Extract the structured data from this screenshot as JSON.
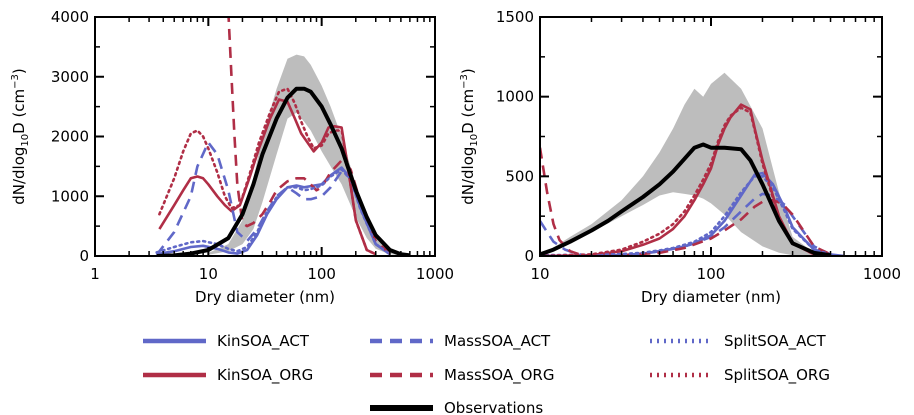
{
  "colors": {
    "act": "#6068c8",
    "org": "#b02e46",
    "obs": "#000000",
    "band": "#bdbdbd"
  },
  "chart_data": [
    {
      "type": "line",
      "xscale": "log",
      "xlim": [
        1,
        1000
      ],
      "ylim": [
        0,
        4000
      ],
      "xticks": [
        "1",
        "10",
        "100",
        "1000"
      ],
      "yticks": [
        "0",
        "1000",
        "2000",
        "3000",
        "4000"
      ],
      "xlabel": "Dry diameter (nm)",
      "ylabel_main": "dN/dlog",
      "ylabel_sub": "10",
      "ylabel_tail": "D (cm",
      "ylabel_sup": "−3",
      "ylabel_close": ")",
      "band": {
        "x": [
          10,
          15,
          20,
          25,
          30,
          40,
          50,
          60,
          70,
          80,
          100,
          120,
          150,
          200,
          250,
          300,
          400,
          500
        ],
        "lower": [
          20,
          80,
          200,
          450,
          900,
          1700,
          2300,
          2400,
          2250,
          2100,
          1750,
          1500,
          1200,
          650,
          300,
          120,
          30,
          10
        ],
        "upper": [
          50,
          200,
          600,
          1300,
          2000,
          2800,
          3300,
          3370,
          3340,
          3200,
          2850,
          2500,
          2000,
          1200,
          700,
          400,
          100,
          30
        ]
      },
      "series": [
        {
          "name": "Observations",
          "color": "obs",
          "dash": "solid",
          "x": [
            3.5,
            5,
            7,
            10,
            15,
            20,
            25,
            30,
            40,
            50,
            60,
            70,
            80,
            100,
            120,
            150,
            200,
            250,
            300,
            400,
            500,
            600
          ],
          "y": [
            0,
            10,
            40,
            100,
            300,
            700,
            1200,
            1700,
            2300,
            2650,
            2800,
            2800,
            2750,
            2500,
            2200,
            1800,
            1100,
            650,
            350,
            100,
            30,
            10
          ]
        },
        {
          "name": "KinSOA_ACT",
          "color": "act",
          "dash": "solid",
          "x": [
            3.5,
            5,
            7,
            9,
            12,
            15,
            18,
            22,
            27,
            33,
            40,
            50,
            60,
            70,
            80,
            100,
            120,
            150,
            180,
            220,
            300,
            400
          ],
          "y": [
            30,
            80,
            150,
            170,
            120,
            60,
            40,
            100,
            350,
            700,
            950,
            1150,
            1180,
            1150,
            1170,
            1200,
            1350,
            1480,
            1300,
            800,
            200,
            30
          ]
        },
        {
          "name": "KinSOA_ORG",
          "color": "org",
          "dash": "solid",
          "x": [
            3.7,
            5,
            6,
            7,
            8,
            9,
            10,
            12,
            14,
            16,
            19,
            23,
            28,
            35,
            42,
            50,
            58,
            66,
            75,
            85,
            100,
            115,
            130,
            150,
            170,
            200,
            250,
            300
          ],
          "y": [
            450,
            850,
            1100,
            1300,
            1330,
            1300,
            1200,
            1000,
            850,
            750,
            850,
            1300,
            1800,
            2300,
            2620,
            2580,
            2300,
            2050,
            1900,
            1750,
            1900,
            2150,
            2170,
            2150,
            1500,
            600,
            100,
            30
          ]
        },
        {
          "name": "MassSOA_ACT",
          "color": "act",
          "dash": "dashed",
          "x": [
            3.5,
            5,
            7,
            8,
            10,
            12,
            15,
            18,
            22,
            27,
            33,
            40,
            50,
            60,
            70,
            80,
            100,
            120,
            150,
            180,
            220,
            300,
            400
          ],
          "y": [
            20,
            400,
            1000,
            1500,
            1900,
            1700,
            1100,
            400,
            250,
            450,
            750,
            1000,
            1150,
            1050,
            950,
            950,
            1000,
            1150,
            1420,
            1300,
            800,
            200,
            30
          ]
        },
        {
          "name": "MassSOA_ORG",
          "color": "org",
          "dash": "dashed",
          "x": [
            15,
            16,
            17,
            18,
            20,
            22,
            25,
            30,
            35,
            40,
            50,
            60,
            70,
            80,
            90,
            100,
            120,
            150,
            180,
            220,
            300,
            400
          ],
          "y": [
            4100,
            3000,
            2000,
            1200,
            550,
            500,
            550,
            700,
            900,
            1100,
            1250,
            1300,
            1300,
            1200,
            1100,
            1150,
            1400,
            1600,
            1450,
            900,
            250,
            40
          ]
        },
        {
          "name": "SplitSOA_ACT",
          "color": "act",
          "dash": "dotted",
          "x": [
            3.5,
            5,
            7,
            9,
            12,
            15,
            18,
            22,
            27,
            33,
            40,
            50,
            60,
            70,
            80,
            100,
            120,
            150,
            180,
            220,
            300,
            400
          ],
          "y": [
            60,
            150,
            230,
            250,
            200,
            120,
            80,
            150,
            400,
            750,
            980,
            1150,
            1150,
            1100,
            1120,
            1180,
            1330,
            1450,
            1280,
            780,
            200,
            30
          ]
        },
        {
          "name": "SplitSOA_ORG",
          "color": "org",
          "dash": "dotted",
          "x": [
            3.7,
            5,
            6,
            7,
            8,
            9,
            10,
            12,
            14,
            16,
            19,
            23,
            28,
            35,
            42,
            50,
            58,
            66,
            75,
            85,
            100,
            115,
            130,
            150,
            170,
            200,
            250,
            300
          ],
          "y": [
            700,
            1300,
            1750,
            2050,
            2100,
            2000,
            1800,
            1400,
            1000,
            800,
            850,
            1350,
            1900,
            2400,
            2750,
            2800,
            2550,
            2250,
            2000,
            1800,
            1850,
            2050,
            2100,
            2100,
            1500,
            600,
            100,
            30
          ]
        }
      ]
    },
    {
      "type": "line",
      "xscale": "log",
      "xlim": [
        10,
        1000
      ],
      "ylim": [
        0,
        1500
      ],
      "xticks": [
        "10",
        "100",
        "1000"
      ],
      "yticks": [
        "0",
        "500",
        "1000",
        "1500"
      ],
      "xlabel": "Dry diameter (nm)",
      "ylabel_main": "dN/dlog",
      "ylabel_sub": "10",
      "ylabel_tail": "D (cm",
      "ylabel_sup": "−3",
      "ylabel_close": ")",
      "band": {
        "x": [
          10,
          15,
          20,
          30,
          40,
          50,
          60,
          70,
          80,
          90,
          100,
          120,
          150,
          200,
          250,
          300,
          400
        ],
        "lower": [
          0,
          80,
          150,
          250,
          320,
          380,
          400,
          390,
          380,
          360,
          330,
          260,
          150,
          60,
          20,
          5,
          0
        ],
        "upper": [
          0,
          120,
          200,
          350,
          500,
          650,
          800,
          950,
          1050,
          1000,
          1080,
          1150,
          1050,
          800,
          400,
          120,
          20
        ]
      },
      "series": [
        {
          "name": "Observations",
          "color": "obs",
          "dash": "solid",
          "x": [
            10,
            12,
            15,
            20,
            25,
            30,
            40,
            50,
            60,
            70,
            80,
            90,
            100,
            120,
            150,
            170,
            200,
            250,
            300,
            400,
            500
          ],
          "y": [
            10,
            40,
            90,
            160,
            220,
            280,
            370,
            450,
            530,
            610,
            680,
            700,
            680,
            680,
            670,
            600,
            450,
            220,
            80,
            20,
            5
          ]
        },
        {
          "name": "KinSOA_ACT",
          "color": "act",
          "dash": "solid",
          "x": [
            10,
            20,
            30,
            40,
            50,
            60,
            70,
            80,
            100,
            120,
            150,
            180,
            200,
            230,
            270,
            300,
            400,
            500,
            600
          ],
          "y": [
            0,
            2,
            5,
            15,
            30,
            45,
            60,
            80,
            130,
            220,
            380,
            510,
            520,
            450,
            300,
            180,
            40,
            10,
            0
          ]
        },
        {
          "name": "KinSOA_ORG",
          "color": "org",
          "dash": "solid",
          "x": [
            10,
            20,
            30,
            40,
            50,
            60,
            70,
            80,
            90,
            100,
            110,
            120,
            130,
            150,
            170,
            180,
            200,
            250,
            300,
            400,
            500
          ],
          "y": [
            0,
            5,
            30,
            70,
            110,
            170,
            250,
            350,
            450,
            550,
            700,
            800,
            870,
            950,
            920,
            800,
            600,
            250,
            80,
            10,
            0
          ]
        },
        {
          "name": "MassSOA_ACT",
          "color": "act",
          "dash": "dashed",
          "x": [
            10,
            11,
            12,
            14,
            17,
            20,
            30,
            40,
            50,
            60,
            70,
            80,
            100,
            120,
            150,
            180,
            200,
            230,
            270,
            300,
            400,
            500
          ],
          "y": [
            220,
            150,
            90,
            40,
            10,
            0,
            5,
            15,
            30,
            45,
            60,
            80,
            120,
            180,
            280,
            360,
            390,
            380,
            320,
            250,
            60,
            10
          ]
        },
        {
          "name": "MassSOA_ORG",
          "color": "org",
          "dash": "dashed",
          "x": [
            10,
            11,
            12,
            13,
            15,
            17,
            20,
            30,
            50,
            70,
            100,
            120,
            150,
            180,
            200,
            230,
            260,
            300,
            400,
            500
          ],
          "y": [
            680,
            400,
            200,
            100,
            30,
            10,
            0,
            5,
            20,
            50,
            110,
            160,
            230,
            310,
            340,
            350,
            330,
            260,
            60,
            10
          ]
        },
        {
          "name": "SplitSOA_ACT",
          "color": "act",
          "dash": "dotted",
          "x": [
            10,
            20,
            30,
            40,
            50,
            60,
            70,
            80,
            100,
            120,
            150,
            180,
            200,
            230,
            270,
            300,
            400,
            500
          ],
          "y": [
            5,
            8,
            12,
            20,
            35,
            50,
            70,
            90,
            150,
            250,
            400,
            500,
            500,
            430,
            280,
            170,
            40,
            10
          ]
        },
        {
          "name": "SplitSOA_ORG",
          "color": "org",
          "dash": "dotted",
          "x": [
            10,
            20,
            30,
            40,
            50,
            60,
            70,
            80,
            90,
            100,
            110,
            120,
            130,
            150,
            170,
            180,
            200,
            250,
            300,
            400,
            500
          ],
          "y": [
            0,
            10,
            40,
            90,
            140,
            200,
            280,
            380,
            480,
            580,
            720,
            820,
            880,
            930,
            900,
            790,
            580,
            240,
            80,
            10,
            0
          ]
        }
      ]
    }
  ],
  "legend": [
    {
      "label": "KinSOA_ACT",
      "color": "act",
      "dash": "solid"
    },
    {
      "label": "MassSOA_ACT",
      "color": "act",
      "dash": "dashed"
    },
    {
      "label": "SplitSOA_ACT",
      "color": "act",
      "dash": "dotted"
    },
    {
      "label": "KinSOA_ORG",
      "color": "org",
      "dash": "solid"
    },
    {
      "label": "MassSOA_ORG",
      "color": "org",
      "dash": "dashed"
    },
    {
      "label": "SplitSOA_ORG",
      "color": "org",
      "dash": "dotted"
    },
    {
      "label": "Observations",
      "color": "obs",
      "dash": "solid"
    }
  ]
}
